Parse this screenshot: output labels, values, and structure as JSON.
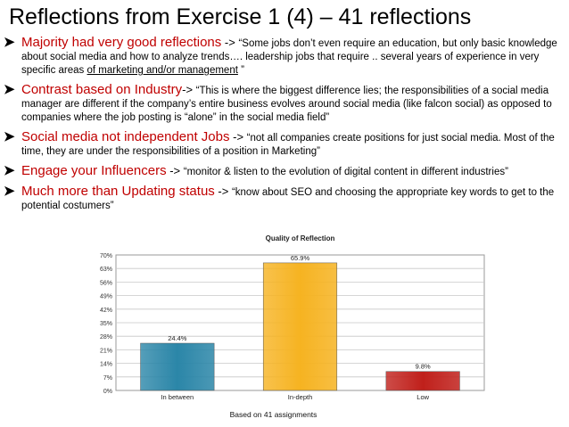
{
  "slide": {
    "title": "Reflections from Exercise 1 (4) – 41 reflections"
  },
  "bullets": [
    {
      "head": "Majority had very good reflections",
      "sep": " -> ",
      "text": "“Some jobs don’t even require an education, but only basic knowledge about social media and how to analyze trends…. leadership jobs that require .. several years of experience in very specific areas ",
      "underline": "of marketing and/or management",
      "tail": " ”"
    },
    {
      "head": "Contrast based on Industry",
      "sep": "-> ",
      "text": "“This is where the biggest difference lies; the responsibilities of a social media manager are different if the company’s entire business evolves around social media (like falcon social) as opposed to companies where the job posting is “alone” in the social media field”",
      "underline": "",
      "tail": ""
    },
    {
      "head": "Social media not independent Jobs",
      "sep": " -> ",
      "text": "“not all companies create positions for just social media. Most of the time, they are under the responsibilities of a position in Marketing”",
      "underline": "",
      "tail": ""
    },
    {
      "head": "Engage your Influencers",
      "sep": " -> ",
      "text": "“monitor & listen to the evolution of digital content in different industries”",
      "underline": "",
      "tail": ""
    },
    {
      "head": "Much more than Updating status",
      "sep": " -> ",
      "text": "“know about SEO and choosing the appropriate key words to get to the potential costumers”",
      "underline": "",
      "tail": ""
    }
  ],
  "chart_data": {
    "type": "bar",
    "title": "Quality of Reflection",
    "xlabel": "Based on 41 assignments",
    "ylabel": "",
    "categories": [
      "In between",
      "In-depth",
      "Low"
    ],
    "values": [
      24.4,
      65.9,
      9.8
    ],
    "value_labels": [
      "24.4%",
      "65.9%",
      "9.8%"
    ],
    "yticks": [
      "0%",
      "7%",
      "14%",
      "21%",
      "28%",
      "35%",
      "42%",
      "49%",
      "56%",
      "63%",
      "70%"
    ],
    "ylim": [
      0,
      70
    ],
    "grid": true,
    "colors": [
      "#2b86a8",
      "#f6b321",
      "#c0201b"
    ],
    "legend": "none"
  },
  "colors": {
    "heading": "#c00000",
    "bullet_arrow": "#000000"
  }
}
